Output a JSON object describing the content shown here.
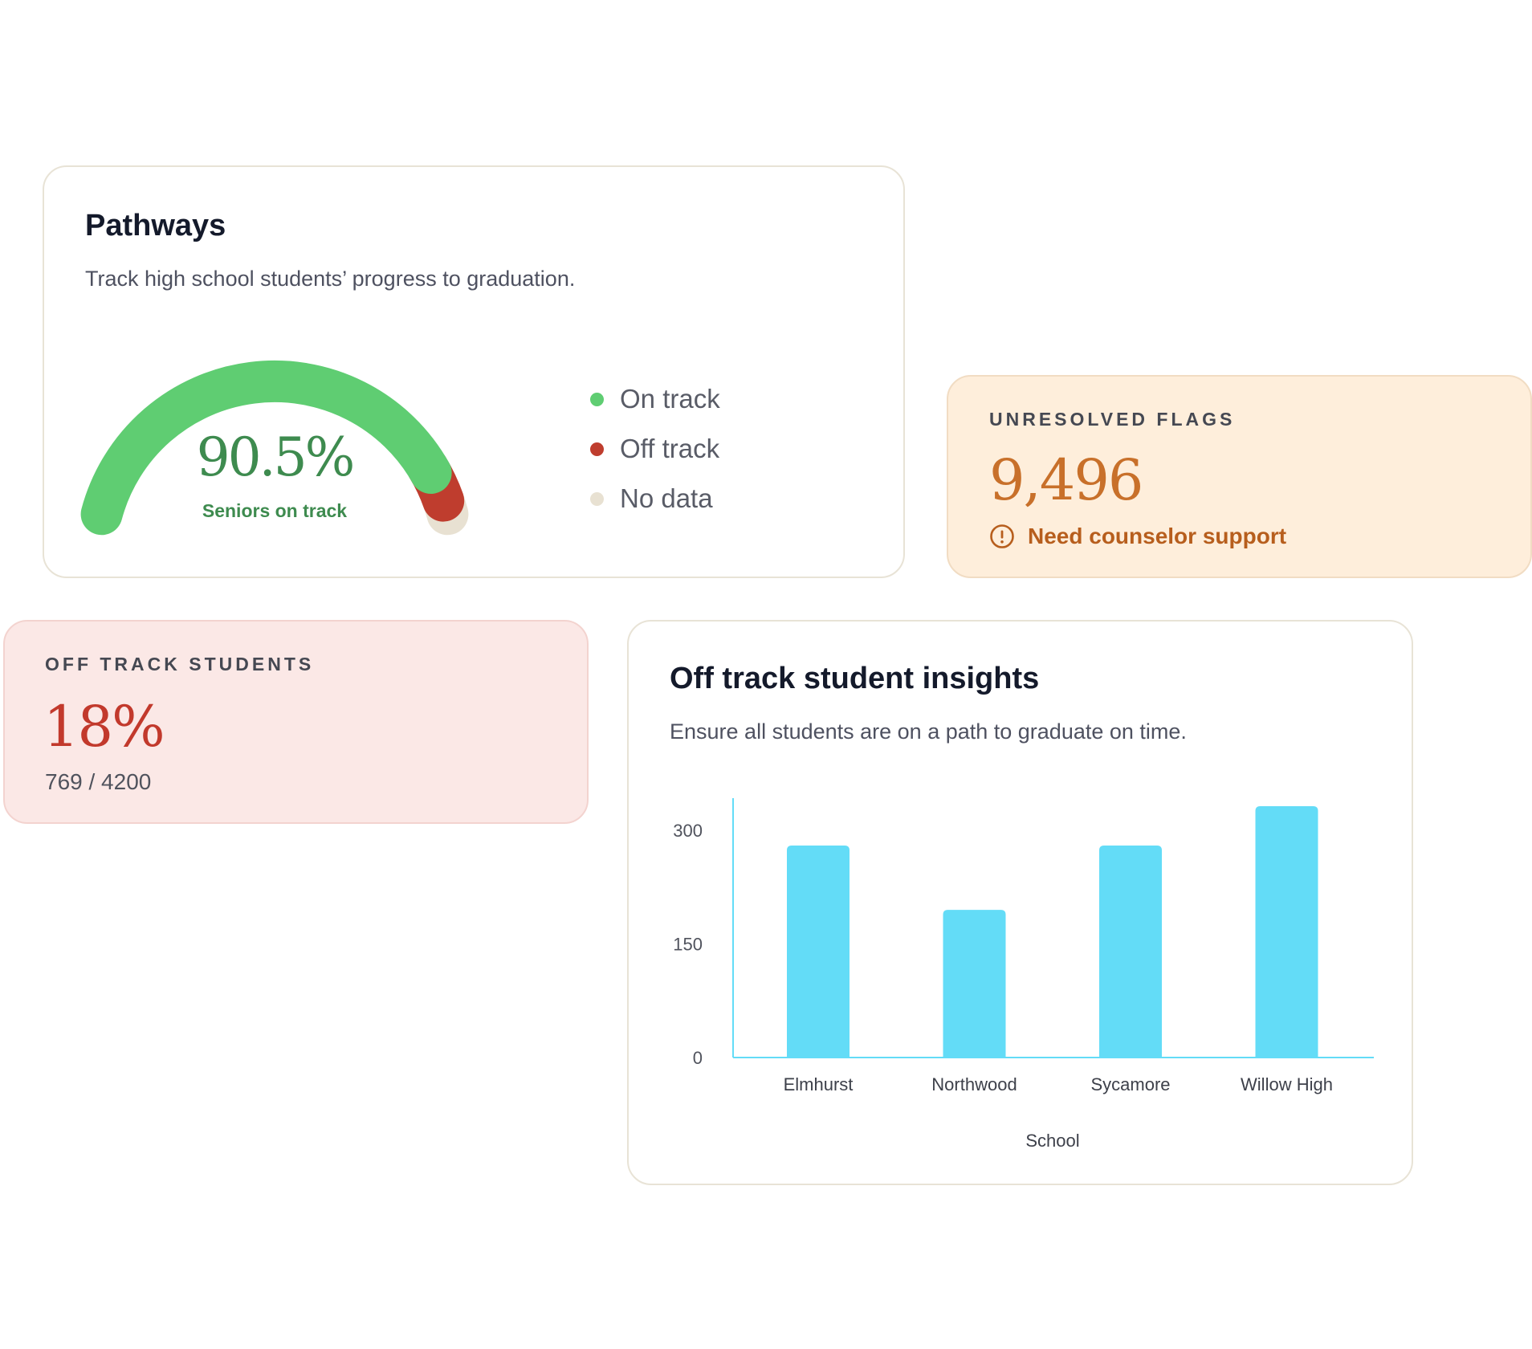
{
  "pathways": {
    "title": "Pathways",
    "subtitle": "Track high school students’ progress to graduation.",
    "gauge": {
      "value_label": "90.5%",
      "caption": "Seniors on track",
      "on_track_pct": 90.5,
      "off_track_pct": 6.5,
      "no_data_pct": 3.0,
      "colors": {
        "on": "#5fcd72",
        "off": "#bf3d2e",
        "none": "#e8e1d2",
        "value_text": "#3e8b4f"
      }
    },
    "legend": [
      {
        "label": "On track",
        "color": "#5fcd72"
      },
      {
        "label": "Off track",
        "color": "#bf3d2e"
      },
      {
        "label": "No data",
        "color": "#e8e1d2"
      }
    ]
  },
  "flags": {
    "eyebrow": "UNRESOLVED FLAGS",
    "value": "9,496",
    "note": "Need counselor support",
    "note_icon": "alert-circle-icon"
  },
  "off_track": {
    "eyebrow": "OFF TRACK STUDENTS",
    "value": "18%",
    "ratio": "769 / 4200"
  },
  "insights": {
    "title": "Off track student insights",
    "subtitle": "Ensure all students are on a path to graduate on time.",
    "chart_data": {
      "type": "bar",
      "categories": [
        "Elmhurst",
        "Northwood",
        "Sycamore",
        "Willow High"
      ],
      "values": [
        280,
        195,
        280,
        332
      ],
      "ylim": [
        0,
        332
      ],
      "yticks": [
        "300",
        "150",
        "0"
      ],
      "ytick_values": [
        300,
        150,
        0
      ],
      "xlabel": "School",
      "ylabel": "",
      "grid": false,
      "bar_color": "#63dcf7",
      "axis_color": "#63dcf7"
    }
  }
}
